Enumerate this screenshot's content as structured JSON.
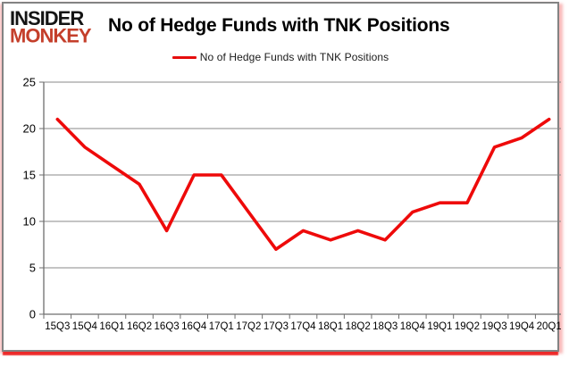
{
  "header": {
    "logo_line1": "INSIDER",
    "logo_line2": "MONKEY",
    "title": "No of Hedge Funds with TNK Positions"
  },
  "legend": {
    "label": "No of Hedge Funds with TNK Positions"
  },
  "colors": {
    "series_line": "#ee0a0a",
    "gridline": "#8a8a8a",
    "axis_line": "#6e6e6e",
    "tick_label": "#000000",
    "card_border": "#838383",
    "bottom_glow": "#eb1919",
    "logo_black": "#141414",
    "logo_red": "#c43f2b",
    "background": "#ffffff"
  },
  "chart_data": {
    "type": "line",
    "title": "No of Hedge Funds with TNK Positions",
    "series_name": "No of Hedge Funds with TNK Positions",
    "categories": [
      "15Q3",
      "15Q4",
      "16Q1",
      "16Q2",
      "16Q3",
      "16Q4",
      "17Q1",
      "17Q2",
      "17Q3",
      "17Q4",
      "18Q1",
      "18Q2",
      "18Q3",
      "18Q4",
      "19Q1",
      "19Q2",
      "19Q3",
      "19Q4",
      "20Q1"
    ],
    "values": [
      21,
      18,
      16,
      14,
      9,
      15,
      15,
      11,
      7,
      9,
      8,
      9,
      8,
      11,
      12,
      12,
      18,
      19,
      21
    ],
    "ylim": [
      0,
      25
    ],
    "yticks": [
      0,
      5,
      10,
      15,
      20,
      25
    ],
    "grid": "horizontal",
    "legend_position": "top-center",
    "xlabel": "",
    "ylabel": ""
  }
}
